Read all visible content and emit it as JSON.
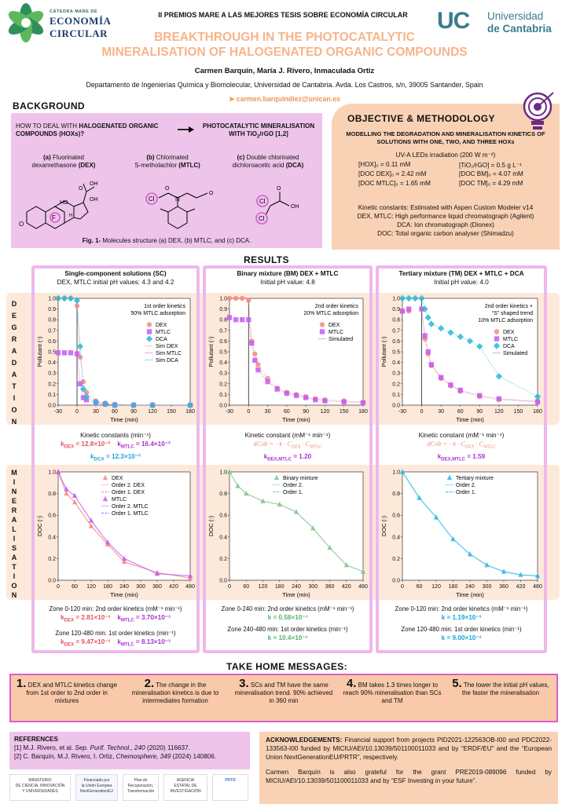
{
  "header": {
    "left_logo": {
      "kicker": "CÁTEDRA MARE DE",
      "line1": "ECONOMÍA",
      "line2": "CIRCULAR"
    },
    "competition": "II PREMIOS MARE A LAS MEJORES TESIS SOBRE ECONOMÍA CIRCULAR",
    "title_line1": "BREAKTHROUGH IN THE PHOTOCATALYTIC",
    "title_line2": "MINERALISATION OF HALOGENATED ORGANIC COMPOUNDS",
    "authors": "Carmen Barquín, María J. Rivero, Inmaculada Ortiz",
    "affiliation": "Departamento de Ingenierías Química y Biomolecular, Universidad de Cantabria. Avda. Los Castros, s/n, 39005 Santander, Spain",
    "email": "carmen.barquindiez@unican.es",
    "right_logo": {
      "mark": "UC",
      "line1": "Universidad",
      "line2": "de Cantabria"
    },
    "colors": {
      "title": "#f7b48a",
      "accent": "#f0944f",
      "uc": "#3a7d8c"
    }
  },
  "background": {
    "title": "BACKGROUND",
    "question_plain": "HOW TO DEAL WITH ",
    "question_bold": "HALOGENATED ORGANIC COMPOUNDS (HOXs)?",
    "answer_line1": "PHOTOCATALYTIC MINERALISATION",
    "answer_line2": "WITH TiO",
    "answer_sub": "2",
    "answer_line2b": "/rGO [1,2]",
    "molecules": [
      {
        "tag": "(a)",
        "name": "Fluorinated",
        "name2": "dexamethasone",
        "abbr": "(DEX)"
      },
      {
        "tag": "(b)",
        "name": "Chlorinated",
        "name2": "S-metholachlor",
        "abbr": "(MTLC)"
      },
      {
        "tag": "(c)",
        "name": "Double chlorinated",
        "name2": "dichloroacetic acid",
        "abbr": "(DCA)"
      }
    ],
    "atoms": {
      "OH": "OH",
      "HO": "HO",
      "O": "O",
      "F": "F",
      "H": "H",
      "Cl": "Cl",
      "N": "N"
    },
    "figure_label": "Fig. 1-",
    "figure_caption": " Molecules structure (a) DEX, (b) MTLC, and (c) DCA."
  },
  "objective": {
    "title": "OBJECTIVE & METHODOLOGY",
    "subtitle": "MODELLING THE DEGRADATION AND MINERALISATION KINETICS OF SOLUTIONS WITH ONE, TWO, AND THREE HOXs",
    "irradiation": "UV-A LEDs irradiation (200 W m⁻²)",
    "conditions_left": [
      "[HOX]₀ = 0.11 mM",
      "[DOC DEX]₀ = 2.42 mM",
      "[DOC MTLC]₀ = 1.65 mM"
    ],
    "conditions_right": [
      "[TiO₂/rGO] = 0.5 g L⁻¹",
      "[DOC BM]₀ = 4.07 mM",
      "[DOC TM]₀ = 4.29 mM"
    ],
    "methods": [
      "Kinetic constants: Estimated with Aspen Custom Modeler v14",
      "DEX, MTLC: High performance liquid chromatograph (Agilent)",
      "DCA: Ion chromatograph (Dionex)",
      "DOC: Total organic carbon analyser (Shimadzu)"
    ]
  },
  "results": {
    "title": "RESULTS",
    "row_labels": {
      "degradation": [
        "D",
        "E",
        "G",
        "R",
        "A",
        "D",
        "A",
        "T",
        "I",
        "O",
        "N"
      ],
      "mineralisation": [
        "M",
        "I",
        "N",
        "E",
        "R",
        "A",
        "L",
        "I",
        "S",
        "A",
        "T",
        "I",
        "O",
        "N"
      ]
    },
    "columns": [
      {
        "head1": "Single-component solutions (SC)",
        "head2": "DEX, MTLC initial pH values: 4.3 and 4.2",
        "deg_kinetics_title": "Kinetic constants (min⁻¹)",
        "deg_k": [
          {
            "label": "k",
            "sub": "DEX",
            "value": " = 12.8×10⁻²",
            "color": "red"
          },
          {
            "label": "k",
            "sub": "MTLC",
            "value": " = 16.4×10⁻²",
            "color": "mag"
          },
          {
            "label": "k",
            "sub": "DCA",
            "value": " = 12.3×10⁻²",
            "color": "cyan"
          }
        ],
        "min_lines": [
          "Zone 0-120 min: 2nd order kinetics (mM⁻¹ min⁻¹)",
          "Zone 120-480 min: 1st order kinetics (min⁻¹)"
        ],
        "min_k": [
          {
            "label": "k",
            "sub": "DEX",
            "value": " = 2.81×10⁻³",
            "color": "red"
          },
          {
            "label": "k",
            "sub": "MTLC",
            "value": " = 3.70×10⁻³",
            "color": "mag"
          },
          {
            "label": "k",
            "sub": "DEX",
            "value": " = 9.47×10⁻³",
            "color": "red"
          },
          {
            "label": "k",
            "sub": "MTLC",
            "value": " = 8.13×10⁻³",
            "color": "mag"
          }
        ]
      },
      {
        "head1": "Binary mixture (BM) DEX + MTLC",
        "head2": "Initial pH value: 4.8",
        "deg_kinetics_title": "Kinetic constant (mM⁻¹ min⁻¹)",
        "rate_eq": "dC/dt = −k · C",
        "rate_eq_sub1": "DEX",
        "rate_eq_mid": " · C",
        "rate_eq_sub2": "MTLC",
        "deg_k": [
          {
            "label": "k",
            "sub": "DEX,MTLC",
            "value": " = 1.20",
            "color": "mag"
          }
        ],
        "min_lines": [
          "Zone 0-240 min: 2nd order kinetics (mM⁻¹ min⁻¹)",
          "Zone 240-480 min: 1st order kinetics (min⁻¹)"
        ],
        "min_k": [
          {
            "label": "k",
            "value": " = 0.58×10⁻³",
            "color": "grn"
          },
          {
            "label": "k",
            "value": " = 10.4×10⁻³",
            "color": "grn"
          }
        ]
      },
      {
        "head1": "Tertiary mixture (TM) DEX + MTLC + DCA",
        "head2": "Initial pH value: 4.0",
        "deg_kinetics_title": "Kinetic constant (mM⁻¹ min⁻¹)",
        "rate_eq": "dC/dt = −k · C",
        "rate_eq_sub1": "DEX",
        "rate_eq_mid": " · C",
        "rate_eq_sub2": "MTLC",
        "deg_k": [
          {
            "label": "k",
            "sub": "DEX,MTLC",
            "value": " = 1.59",
            "color": "mag"
          }
        ],
        "min_lines": [
          "Zone 0-120 min: 2nd order kinetics (mM⁻¹ min⁻¹)",
          "Zone 120-480 min: 1st order kinetics (min⁻¹)"
        ],
        "min_k": [
          {
            "label": "k",
            "value": " = 1.19×10⁻³",
            "color": "cyan"
          },
          {
            "label": "k",
            "value": " = 9.00×10⁻³",
            "color": "cyan"
          }
        ]
      }
    ]
  },
  "chart_data": [
    {
      "id": "deg_sc",
      "type": "scatter",
      "xlabel": "Time (min)",
      "ylabel": "Pollutant (-)",
      "xlim": [
        -30,
        180
      ],
      "ylim": [
        0,
        1.0
      ],
      "xticks": [
        -30,
        0,
        30,
        60,
        90,
        120,
        150,
        180
      ],
      "yticks": [
        0.0,
        0.1,
        0.2,
        0.3,
        0.4,
        0.5,
        0.6,
        0.7,
        0.8,
        0.9,
        1.0
      ],
      "annotation": [
        "1st order kinetics",
        "50% MTLC adsorption"
      ],
      "series": [
        {
          "name": "DEX",
          "marker": "circle",
          "color": "#f4897f",
          "x": [
            -30,
            -20,
            -10,
            0,
            5,
            10,
            15,
            30,
            45,
            60,
            90,
            120,
            180
          ],
          "y": [
            1.0,
            1.0,
            1.0,
            0.93,
            0.45,
            0.22,
            0.12,
            0.04,
            0.02,
            0.01,
            0.0,
            0.0,
            0.0
          ]
        },
        {
          "name": "MTLC",
          "marker": "square",
          "color": "#c45cf0",
          "x": [
            -30,
            -20,
            -10,
            0,
            5,
            10,
            15,
            30,
            45,
            60,
            90,
            120,
            180
          ],
          "y": [
            0.49,
            0.49,
            0.49,
            0.48,
            0.2,
            0.07,
            0.05,
            0.02,
            0.01,
            0.0,
            0.0,
            0.0,
            0.0
          ]
        },
        {
          "name": "DCA",
          "marker": "diamond",
          "color": "#2bb8d8",
          "x": [
            -30,
            -20,
            -10,
            0,
            5,
            10,
            15,
            30,
            45,
            60,
            90,
            120,
            180
          ],
          "y": [
            1.0,
            1.0,
            1.0,
            0.98,
            0.55,
            0.15,
            0.08,
            0.03,
            0.01,
            0.0,
            0.0,
            0.0,
            0.0
          ]
        },
        {
          "name": "Sim DEX",
          "line": "dotted",
          "color": "#f4897f"
        },
        {
          "name": "Sim MTLC",
          "line": "dotted",
          "color": "#c45cf0"
        },
        {
          "name": "Sim DCA",
          "line": "dotted",
          "color": "#2bb8d8"
        }
      ]
    },
    {
      "id": "deg_bm",
      "type": "scatter",
      "xlabel": "Time (min)",
      "ylabel": "Pollutant (-)",
      "xlim": [
        -30,
        180
      ],
      "ylim": [
        0,
        1.0
      ],
      "xticks": [
        -30,
        0,
        30,
        60,
        90,
        120,
        150,
        180
      ],
      "yticks": [
        0.0,
        0.1,
        0.2,
        0.3,
        0.4,
        0.5,
        0.6,
        0.7,
        0.8,
        0.9,
        1.0
      ],
      "annotation": [
        "2nd order kinetics",
        "20% MTLC adsorption"
      ],
      "series": [
        {
          "name": "DEX",
          "marker": "circle",
          "color": "#f4897f",
          "x": [
            -30,
            -20,
            -10,
            0,
            5,
            10,
            15,
            30,
            45,
            60,
            75,
            90,
            105,
            120,
            150,
            180
          ],
          "y": [
            1.0,
            1.0,
            1.0,
            0.98,
            0.6,
            0.48,
            0.38,
            0.25,
            0.16,
            0.12,
            0.1,
            0.08,
            0.06,
            0.05,
            0.04,
            0.03
          ]
        },
        {
          "name": "MTLC",
          "marker": "square",
          "color": "#c45cf0",
          "x": [
            -30,
            -20,
            -10,
            0,
            5,
            10,
            15,
            30,
            45,
            60,
            75,
            90,
            105,
            120,
            150,
            180
          ],
          "y": [
            0.82,
            0.8,
            0.8,
            0.8,
            0.58,
            0.42,
            0.33,
            0.22,
            0.15,
            0.11,
            0.09,
            0.07,
            0.05,
            0.04,
            0.03,
            0.02
          ]
        },
        {
          "name": "Simulated",
          "line": "dotted",
          "color": "#888888"
        }
      ]
    },
    {
      "id": "deg_tm",
      "type": "scatter",
      "xlabel": "Time (min)",
      "ylabel": "Pollutant (-)",
      "xlim": [
        -30,
        180
      ],
      "ylim": [
        0,
        1.0
      ],
      "xticks": [
        -30,
        0,
        30,
        60,
        90,
        120,
        150,
        180
      ],
      "yticks": [
        0.0,
        0.1,
        0.2,
        0.3,
        0.4,
        0.5,
        0.6,
        0.7,
        0.8,
        0.9,
        1.0
      ],
      "annotation": [
        "2nd order kinetics +",
        "“S” shaped trend",
        "10% MTLC adsorption"
      ],
      "series": [
        {
          "name": "DEX",
          "marker": "circle",
          "color": "#f4897f",
          "x": [
            -30,
            -20,
            0,
            5,
            10,
            15,
            30,
            45,
            60,
            90,
            120,
            180
          ],
          "y": [
            0.88,
            0.88,
            0.9,
            0.62,
            0.48,
            0.37,
            0.25,
            0.18,
            0.13,
            0.08,
            0.05,
            0.04
          ]
        },
        {
          "name": "MTLC",
          "marker": "square",
          "color": "#c45cf0",
          "x": [
            -30,
            -20,
            0,
            5,
            10,
            15,
            30,
            45,
            60,
            90,
            120,
            180
          ],
          "y": [
            0.88,
            0.9,
            0.9,
            0.65,
            0.5,
            0.38,
            0.26,
            0.19,
            0.14,
            0.09,
            0.06,
            0.03
          ]
        },
        {
          "name": "DCA",
          "marker": "diamond",
          "color": "#2bb8d8",
          "x": [
            -30,
            -20,
            -10,
            0,
            5,
            10,
            15,
            30,
            45,
            60,
            75,
            90,
            120,
            180
          ],
          "y": [
            1.0,
            1.0,
            1.0,
            1.0,
            0.9,
            0.82,
            0.76,
            0.72,
            0.68,
            0.64,
            0.6,
            0.55,
            0.27,
            0.08
          ]
        },
        {
          "name": "Simulated",
          "line": "dotted",
          "color": "#888888"
        }
      ]
    },
    {
      "id": "min_sc",
      "type": "line",
      "xlabel": "Time (min)",
      "ylabel": "DOC (-)",
      "xlim": [
        0,
        480
      ],
      "ylim": [
        0,
        1.0
      ],
      "xticks": [
        0,
        60,
        120,
        180,
        240,
        300,
        360,
        420,
        480
      ],
      "yticks": [
        0.0,
        0.2,
        0.4,
        0.6,
        0.8,
        1.0
      ],
      "series": [
        {
          "name": "DEX",
          "marker": "triangle",
          "color": "#f4897f",
          "x": [
            0,
            30,
            60,
            120,
            180,
            240,
            360,
            480
          ],
          "y": [
            1.0,
            0.8,
            0.72,
            0.5,
            0.33,
            0.17,
            0.07,
            0.02
          ]
        },
        {
          "name": "Order 2. DEX",
          "line": "dotted",
          "color": "#f4897f"
        },
        {
          "name": "Order 1. DEX",
          "line": "dashed",
          "color": "#f4897f"
        },
        {
          "name": "MTLC",
          "marker": "triangle",
          "color": "#c45cf0",
          "x": [
            0,
            30,
            60,
            120,
            180,
            240,
            360,
            480
          ],
          "y": [
            1.0,
            0.84,
            0.78,
            0.55,
            0.35,
            0.2,
            0.06,
            0.04
          ]
        },
        {
          "name": "Order 2. MTLC",
          "line": "dotted",
          "color": "#c45cf0"
        },
        {
          "name": "Order 1. MTLC",
          "line": "dashed",
          "color": "#c45cf0"
        }
      ]
    },
    {
      "id": "min_bm",
      "type": "line",
      "xlabel": "Time (min)",
      "ylabel": "DOC (-)",
      "xlim": [
        0,
        480
      ],
      "ylim": [
        0,
        1.0
      ],
      "xticks": [
        0,
        60,
        120,
        180,
        240,
        300,
        360,
        420,
        480
      ],
      "yticks": [
        0.0,
        0.2,
        0.4,
        0.6,
        0.8,
        1.0
      ],
      "series": [
        {
          "name": "Binary mixture",
          "marker": "triangle",
          "color": "#7cc68a",
          "x": [
            0,
            30,
            60,
            120,
            180,
            240,
            300,
            360,
            420,
            480
          ],
          "y": [
            1.0,
            0.87,
            0.8,
            0.73,
            0.7,
            0.63,
            0.48,
            0.3,
            0.14,
            0.08
          ]
        },
        {
          "name": "Order 2.",
          "line": "dotted",
          "color": "#7cc68a"
        },
        {
          "name": "Order 1.",
          "line": "dashed",
          "color": "#7cc68a"
        }
      ]
    },
    {
      "id": "min_tm",
      "type": "line",
      "xlabel": "Time (min)",
      "ylabel": "DOC (-)",
      "xlim": [
        0,
        480
      ],
      "ylim": [
        0,
        1.0
      ],
      "xticks": [
        0,
        60,
        120,
        180,
        240,
        300,
        360,
        420,
        480
      ],
      "yticks": [
        0.0,
        0.2,
        0.4,
        0.6,
        0.8,
        1.0
      ],
      "series": [
        {
          "name": "Tertiary mixture",
          "marker": "triangle",
          "color": "#27b7e6",
          "x": [
            0,
            60,
            120,
            180,
            240,
            300,
            360,
            420,
            480
          ],
          "y": [
            1.0,
            0.76,
            0.58,
            0.38,
            0.24,
            0.14,
            0.08,
            0.05,
            0.04
          ]
        },
        {
          "name": "Order 2.",
          "line": "dotted",
          "color": "#27b7e6"
        },
        {
          "name": "Order 1.",
          "line": "dashed",
          "color": "#27b7e6"
        }
      ]
    }
  ],
  "take_home": {
    "title": "TAKE HOME MESSAGES:",
    "items": [
      {
        "num": "1.",
        "text": "DEX and MTLC kinetics change from 1st order to 2nd order in mixtures"
      },
      {
        "num": "2.",
        "text": "The change in the mineralisation kinetics is due to intermediates formation"
      },
      {
        "num": "3.",
        "text": "SCs and TM have the same mineralisation trend. 90% achieved in 360 min"
      },
      {
        "num": "4.",
        "text": "BM takes 1.3 times longer to reach 90% mineralisation than SCs and TM"
      },
      {
        "num": "5.",
        "text": "The lower the initial pH values, the faster the mineralisation"
      }
    ]
  },
  "references": {
    "title": "REFERENCES",
    "items": [
      {
        "pre": "[1] M.J. Rivero, et al. ",
        "journal": "Sep. Purif. Technol., 240",
        "post": " (2020) 116637."
      },
      {
        "pre": "[2] C. Barquín, M.J. Rivero, I. Ortiz, ",
        "journal": "Chemosphere, 349",
        "post": " (2024) 140806."
      }
    ]
  },
  "acknowledgements": {
    "title": "ACKNOWLEDGEMENTS:",
    "p1": " Financial support from projects PID2021-122563OB-I00 and PDC2022-133563-I00 funded by MICIU/AEI/10.13039/501100011033 and by “ERDF/EU” and the “European Union NextGenerationEU/PRTR”, respectively.",
    "p2": "Carmen Barquín is also grateful for the grant PRE2019-089096 funded by MICIU/AEI/10.13039/501100011033 and by “ESF Investing in your future”."
  },
  "funder_logos": [
    {
      "line1": "MINISTERIO",
      "line2": "DE CIENCIA, INNOVACIÓN",
      "line3": "Y UNIVERSIDADES"
    },
    {
      "line1": "Financiado por",
      "line2": "la Unión Europea",
      "line3": "NextGenerationEU"
    },
    {
      "line1": "Plan de",
      "line2": "Recuperación,",
      "line3": "Transformación"
    },
    {
      "line1": "AGENCIA",
      "line2": "ESTATAL DE",
      "line3": "INVESTIGACIÓN"
    },
    {
      "line1": "PRTR",
      "line2": "",
      "line3": ""
    }
  ]
}
